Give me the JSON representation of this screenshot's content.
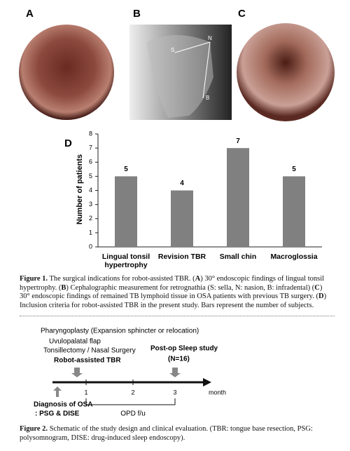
{
  "panels": {
    "a": "A",
    "b": "B",
    "c": "C"
  },
  "image_b_labels": [
    "S",
    "N",
    "B"
  ],
  "chart_data": {
    "type": "bar",
    "panel_label": "D",
    "y_label": "Number of patients",
    "categories": [
      "Lingual tonsil hypertrophy",
      "Revision TBR",
      "Small chin",
      "Macroglossia"
    ],
    "values": [
      5,
      4,
      7,
      5
    ],
    "color": "#808080",
    "ylim": [
      0,
      8
    ],
    "yticks": [
      0,
      1,
      2,
      3,
      4,
      5,
      6,
      7,
      8
    ],
    "grid": false
  },
  "figure1_caption": {
    "label": "Figure 1.",
    "parts": [
      "The surgical indications for robot-assisted TBR. (",
      "A",
      ") 30° endoscopic findings of lingual tonsil hypertrophy. (",
      "B",
      ") Cephalographic measurement for retrognathia (S: sella, N: nasion, B: infradental) (",
      "C",
      ") 30° endoscopic findings of remained TB lymphoid tissue in OSA patients with previous TB surgery. (",
      "D",
      ") Inclusion criteria for robot-assisted TBR in the present study. Bars represent the number of subjects."
    ]
  },
  "figure2": {
    "pharyngoplasty": "Pharyngoplasty (Expansion sphincter or relocation)",
    "uvulopalatal": "Uvulopalatal flap",
    "tonsillectomy": "Tonsillectomy / Nasal Surgery",
    "tbr": "Robot-assisted TBR",
    "postop": "Post-op Sleep study",
    "n": "(N=16)",
    "ticks": [
      1,
      2,
      3
    ],
    "month": "month",
    "diagnosis": "Diagnosis of OSA",
    "psg": ": PSG & DISE",
    "opd": "OPD f/u"
  },
  "figure2_caption": {
    "label": "Figure 2.",
    "parts": [
      "Schematic of the study design and clinical evaluation. (TBR: tongue base resection, PSG: polysomnogram, DISE: drug-induced sleep endoscopy)."
    ]
  }
}
